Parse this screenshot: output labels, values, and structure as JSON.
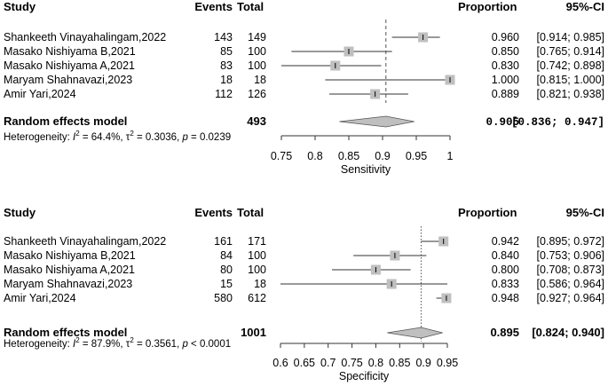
{
  "chart_data": [
    {
      "type": "forest",
      "columns": {
        "study": "Study",
        "events": "Events",
        "total": "Total",
        "proportion": "Proportion",
        "ci": "95%-CI"
      },
      "studies": [
        {
          "name": "Shankeeth Vinayahalingam,2022",
          "events": "143",
          "total": "149",
          "estimate": 0.96,
          "lower": 0.914,
          "upper": 0.985,
          "proportion_text": "0.960",
          "ci_text": "[0.914; 0.985]"
        },
        {
          "name": "Masako Nishiyama B,2021",
          "events": "85",
          "total": "100",
          "estimate": 0.85,
          "lower": 0.765,
          "upper": 0.914,
          "proportion_text": "0.850",
          "ci_text": "[0.765; 0.914]"
        },
        {
          "name": "Masako Nishiyama A,2021",
          "events": "83",
          "total": "100",
          "estimate": 0.83,
          "lower": 0.742,
          "upper": 0.898,
          "proportion_text": "0.830",
          "ci_text": "[0.742; 0.898]"
        },
        {
          "name": "Maryam Shahnavazi,2023",
          "events": "18",
          "total": "18",
          "estimate": 1.0,
          "lower": 0.815,
          "upper": 1.0,
          "proportion_text": "1.000",
          "ci_text": "[0.815; 1.000]"
        },
        {
          "name": "Amir Yari,2024",
          "events": "112",
          "total": "126",
          "estimate": 0.889,
          "lower": 0.821,
          "upper": 0.938,
          "proportion_text": "0.889",
          "ci_text": "[0.821; 0.938]"
        }
      ],
      "summary": {
        "label": "Random effects model",
        "total": "493",
        "estimate": 0.905,
        "lower": 0.836,
        "upper": 0.947,
        "proportion_text": "0.905",
        "ci_text": "[0.836; 0.947]"
      },
      "heterogeneity": {
        "prefix": "Heterogeneity: ",
        "i2_symbol": "I",
        "i2_sup": "2",
        "i2_value": " = 64.4%, ",
        "tau_symbol": "τ",
        "tau_sup": "2",
        "tau_value": " = 0.3036, ",
        "p_symbol": "p",
        "p_value": " = 0.0239"
      },
      "xaxis": {
        "label": "Sensitivity",
        "min": 0.75,
        "max": 1.0,
        "ticks": [
          0.75,
          0.8,
          0.85,
          0.9,
          0.95,
          1.0
        ],
        "tick_labels": [
          "0.75",
          "0.8",
          "0.85",
          "0.9",
          "0.95",
          "1"
        ]
      }
    },
    {
      "type": "forest",
      "columns": {
        "study": "Study",
        "events": "Events",
        "total": "Total",
        "proportion": "Proportion",
        "ci": "95%-CI"
      },
      "studies": [
        {
          "name": "Shankeeth Vinayahalingam,2022",
          "events": "161",
          "total": "171",
          "estimate": 0.942,
          "lower": 0.895,
          "upper": 0.972,
          "proportion_text": "0.942",
          "ci_text": "[0.895; 0.972]"
        },
        {
          "name": "Masako Nishiyama B,2021",
          "events": "84",
          "total": "100",
          "estimate": 0.84,
          "lower": 0.753,
          "upper": 0.906,
          "proportion_text": "0.840",
          "ci_text": "[0.753; 0.906]"
        },
        {
          "name": "Masako Nishiyama A,2021",
          "events": "80",
          "total": "100",
          "estimate": 0.8,
          "lower": 0.708,
          "upper": 0.873,
          "proportion_text": "0.800",
          "ci_text": "[0.708; 0.873]"
        },
        {
          "name": "Maryam Shahnavazi,2023",
          "events": "15",
          "total": "18",
          "estimate": 0.833,
          "lower": 0.586,
          "upper": 0.964,
          "proportion_text": "0.833",
          "ci_text": "[0.586; 0.964]"
        },
        {
          "name": "Amir Yari,2024",
          "events": "580",
          "total": "612",
          "estimate": 0.948,
          "lower": 0.927,
          "upper": 0.964,
          "proportion_text": "0.948",
          "ci_text": "[0.927; 0.964]"
        }
      ],
      "summary": {
        "label": "Random effects model",
        "total": "1001",
        "estimate": 0.895,
        "lower": 0.824,
        "upper": 0.94,
        "proportion_text": "0.895",
        "ci_text": "[0.824; 0.940]"
      },
      "heterogeneity": {
        "prefix": "Heterogeneity: ",
        "i2_symbol": "I",
        "i2_sup": "2",
        "i2_value": " = 87.9%, ",
        "tau_symbol": "τ",
        "tau_sup": "2",
        "tau_value": " = 0.3561, ",
        "p_symbol": "p",
        "p_value": " < 0.0001"
      },
      "xaxis": {
        "label": "Specificity",
        "min": 0.6,
        "max": 0.95,
        "ticks": [
          0.6,
          0.65,
          0.7,
          0.75,
          0.8,
          0.85,
          0.9,
          0.95
        ],
        "tick_labels": [
          "0.6",
          "0.65",
          "0.7",
          "0.75",
          "0.8",
          "0.85",
          "0.9",
          "0.95"
        ]
      }
    }
  ],
  "colors": {
    "text": "#000000",
    "line": "#333333",
    "box": "#bfbfbf",
    "diamond": "#bfbfbf",
    "dotted": "#555555"
  }
}
